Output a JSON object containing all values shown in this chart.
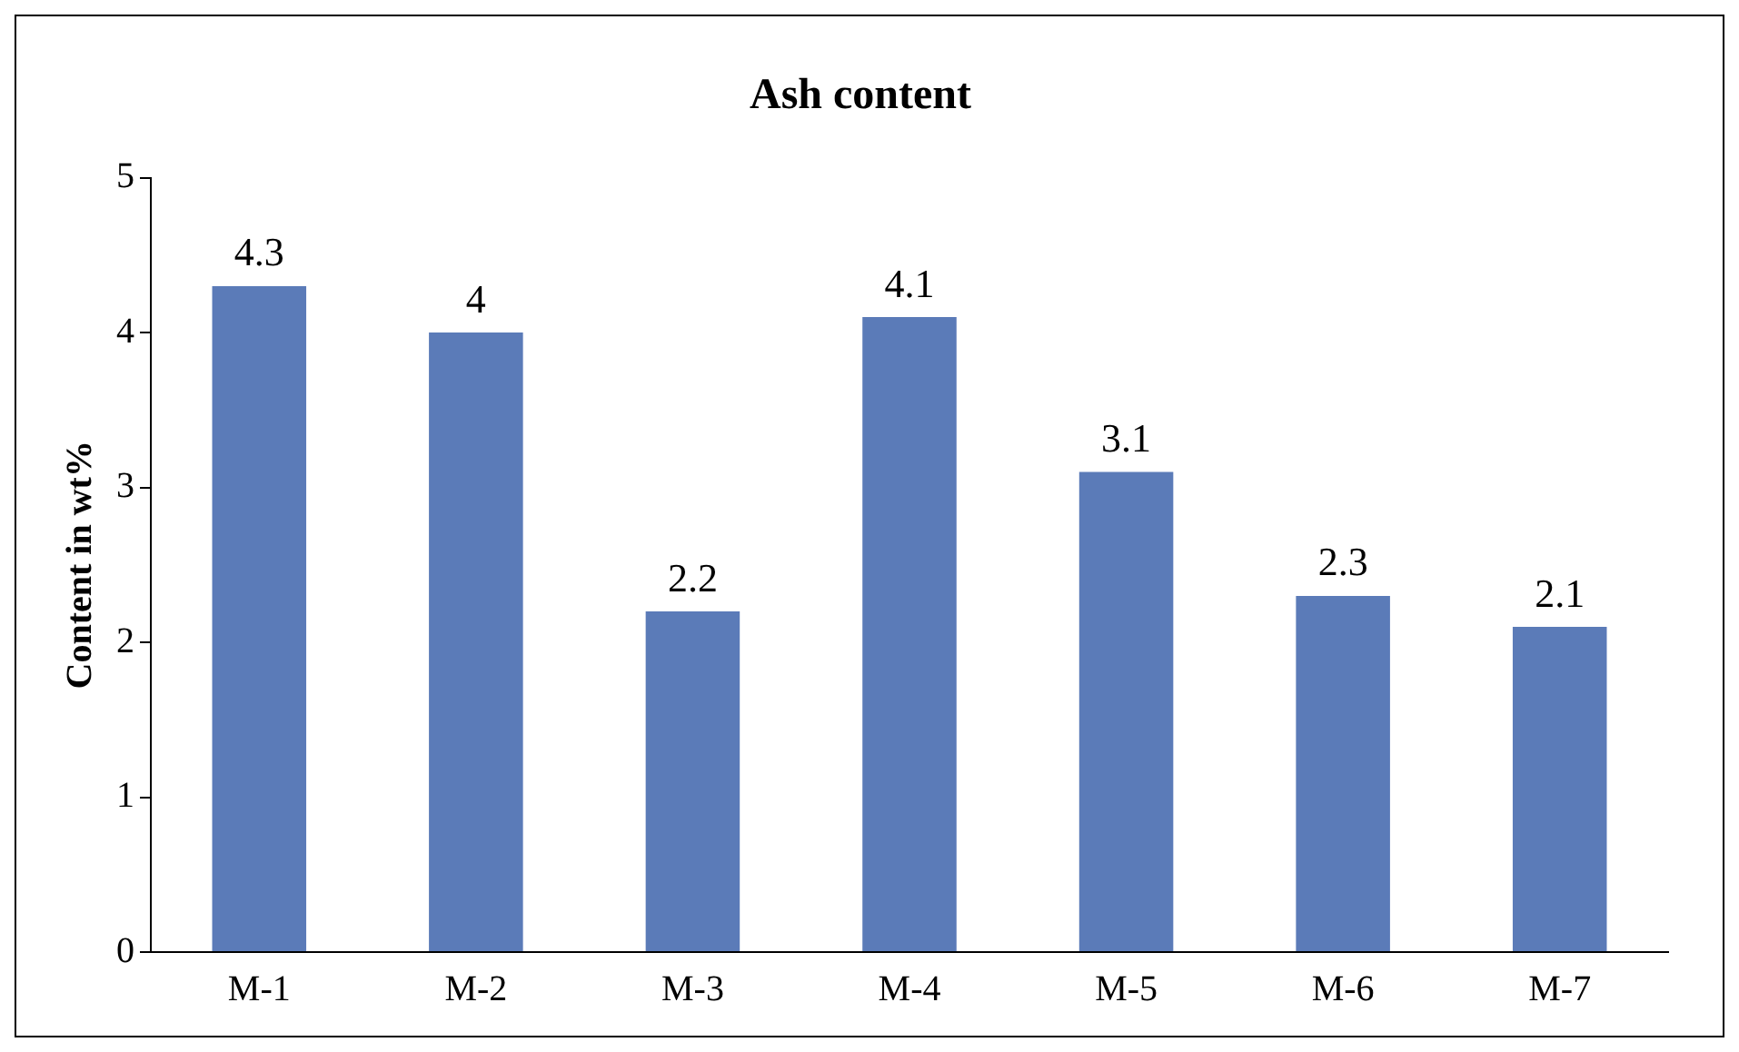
{
  "chart_data": {
    "type": "bar",
    "title": "Ash content",
    "ylabel": "Content in wt%",
    "categories": [
      "M-1",
      "M-2",
      "M-3",
      "M-4",
      "M-5",
      "M-6",
      "M-7"
    ],
    "values": [
      4.3,
      4,
      2.2,
      4.1,
      3.1,
      2.3,
      2.1
    ],
    "color": "#5b7bb8",
    "ylim": [
      0,
      5
    ],
    "yticks": [
      0,
      1,
      2,
      3,
      4,
      5
    ],
    "grid": false,
    "legend": false,
    "data_labels": true
  }
}
